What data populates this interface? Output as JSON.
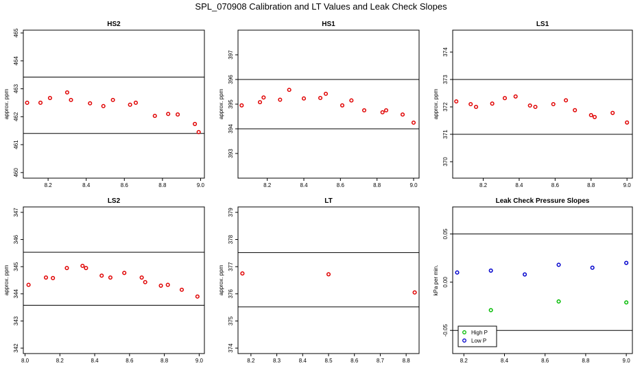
{
  "title": "SPL_070908  Calibration and LT Values and Leak Check Slopes",
  "chart_data": [
    {
      "type": "scatter",
      "title": "HS2",
      "ylabel": "approx. ppm",
      "xlim": [
        8.07,
        9.02
      ],
      "ylim": [
        459.8,
        465.1
      ],
      "xticks": [
        8.2,
        8.4,
        8.6,
        8.8,
        9.0
      ],
      "xtick_labels": [
        "8.2",
        "8.4",
        "8.6",
        "8.8",
        "9.0"
      ],
      "yticks": [
        460,
        461,
        462,
        463,
        464,
        465
      ],
      "ytick_labels": [
        "460",
        "461",
        "462",
        "463",
        "464",
        "465"
      ],
      "hlines": [
        463.42,
        461.4
      ],
      "series": [
        {
          "color": "#e00000",
          "x": [
            8.09,
            8.16,
            8.21,
            8.3,
            8.32,
            8.42,
            8.49,
            8.54,
            8.63,
            8.66,
            8.76,
            8.83,
            8.88,
            8.97,
            8.99
          ],
          "y": [
            462.5,
            462.5,
            462.67,
            462.87,
            462.6,
            462.48,
            462.38,
            462.6,
            462.43,
            462.5,
            462.03,
            462.1,
            462.08,
            461.74,
            461.45
          ]
        }
      ]
    },
    {
      "type": "scatter",
      "title": "HS1",
      "ylabel": "approx. ppm",
      "xlim": [
        8.04,
        9.03
      ],
      "ylim": [
        392.0,
        398.0
      ],
      "xticks": [
        8.2,
        8.4,
        8.6,
        8.8,
        9.0
      ],
      "xtick_labels": [
        "8.2",
        "8.4",
        "8.6",
        "8.8",
        "9.0"
      ],
      "yticks": [
        393,
        394,
        395,
        396,
        397
      ],
      "ytick_labels": [
        "393",
        "394",
        "395",
        "396",
        "397"
      ],
      "hlines": [
        396.0,
        394.0
      ],
      "series": [
        {
          "color": "#e00000",
          "x": [
            8.06,
            8.16,
            8.18,
            8.27,
            8.32,
            8.4,
            8.49,
            8.52,
            8.61,
            8.66,
            8.73,
            8.83,
            8.85,
            8.94,
            9.0
          ],
          "y": [
            394.95,
            395.08,
            395.27,
            395.18,
            395.58,
            395.23,
            395.25,
            395.42,
            394.95,
            395.15,
            394.75,
            394.67,
            394.75,
            394.58,
            394.25
          ]
        }
      ]
    },
    {
      "type": "scatter",
      "title": "LS1",
      "ylabel": "approx. ppm",
      "xlim": [
        8.03,
        9.03
      ],
      "ylim": [
        369.4,
        374.8
      ],
      "xticks": [
        8.2,
        8.4,
        8.6,
        8.8,
        9.0
      ],
      "xtick_labels": [
        "8.2",
        "8.4",
        "8.6",
        "8.8",
        "9.0"
      ],
      "yticks": [
        370,
        371,
        372,
        373,
        374
      ],
      "ytick_labels": [
        "370",
        "371",
        "372",
        "373",
        "374"
      ],
      "hlines": [
        373.0,
        371.0
      ],
      "series": [
        {
          "color": "#e00000",
          "x": [
            8.05,
            8.13,
            8.16,
            8.25,
            8.32,
            8.38,
            8.46,
            8.49,
            8.59,
            8.66,
            8.71,
            8.8,
            8.82,
            8.92,
            9.0
          ],
          "y": [
            372.2,
            372.1,
            372.0,
            372.12,
            372.32,
            372.38,
            372.05,
            372.0,
            372.1,
            372.24,
            371.88,
            371.7,
            371.63,
            371.78,
            371.43
          ]
        }
      ]
    },
    {
      "type": "scatter",
      "title": "LS2",
      "ylabel": "approx. ppm",
      "xlim": [
        7.99,
        9.03
      ],
      "ylim": [
        341.8,
        347.2
      ],
      "xticks": [
        8.0,
        8.2,
        8.4,
        8.6,
        8.8,
        9.0
      ],
      "xtick_labels": [
        "8.0",
        "8.2",
        "8.4",
        "8.6",
        "8.8",
        "9.0"
      ],
      "yticks": [
        342,
        343,
        344,
        345,
        346,
        347
      ],
      "ytick_labels": [
        "342",
        "343",
        "344",
        "345",
        "346",
        "347"
      ],
      "hlines": [
        345.53,
        343.58
      ],
      "series": [
        {
          "color": "#e00000",
          "x": [
            8.02,
            8.12,
            8.16,
            8.24,
            8.33,
            8.35,
            8.44,
            8.49,
            8.57,
            8.67,
            8.69,
            8.78,
            8.82,
            8.9,
            8.99
          ],
          "y": [
            344.33,
            344.6,
            344.58,
            344.95,
            345.03,
            344.95,
            344.67,
            344.6,
            344.77,
            344.6,
            344.43,
            344.3,
            344.33,
            344.15,
            343.9
          ]
        }
      ]
    },
    {
      "type": "scatter",
      "title": "LT",
      "ylabel": "approx. ppm",
      "xlim": [
        8.15,
        8.85
      ],
      "ylim": [
        373.8,
        379.2
      ],
      "xticks": [
        8.2,
        8.3,
        8.4,
        8.5,
        8.6,
        8.7,
        8.8
      ],
      "xtick_labels": [
        "8.2",
        "8.3",
        "8.4",
        "8.5",
        "8.6",
        "8.7",
        "8.8"
      ],
      "yticks": [
        374,
        375,
        376,
        377,
        378,
        379
      ],
      "ytick_labels": [
        "374",
        "375",
        "376",
        "377",
        "378",
        "379"
      ],
      "hlines": [
        377.52,
        375.52
      ],
      "series": [
        {
          "color": "#e00000",
          "x": [
            8.167,
            8.5,
            8.833
          ],
          "y": [
            376.75,
            376.72,
            376.05
          ]
        }
      ]
    },
    {
      "type": "scatter",
      "title": "Leak Check Pressure Slopes",
      "ylabel": "kPa per min.",
      "xlim": [
        8.145,
        9.03
      ],
      "ylim": [
        -0.074,
        0.078
      ],
      "xticks": [
        8.2,
        8.4,
        8.6,
        8.8,
        9.0
      ],
      "xtick_labels": [
        "8.2",
        "8.4",
        "8.6",
        "8.8",
        "9.0"
      ],
      "yticks": [
        -0.05,
        0.0,
        0.05
      ],
      "ytick_labels": [
        "-0.05",
        "0.00",
        "0.05"
      ],
      "hlines": [
        0.05,
        -0.05
      ],
      "legend": {
        "position": "bottom-left",
        "entries": [
          "High P",
          "Low P"
        ]
      },
      "series": [
        {
          "name": "High P",
          "color": "#00bb00",
          "x": [
            8.333,
            8.667,
            9.0
          ],
          "y": [
            -0.029,
            -0.02,
            -0.021
          ]
        },
        {
          "name": "Low P",
          "color": "#0000cc",
          "x": [
            8.167,
            8.333,
            8.5,
            8.667,
            8.833,
            9.0
          ],
          "y": [
            0.01,
            0.012,
            0.008,
            0.018,
            0.015,
            0.02
          ]
        }
      ]
    }
  ]
}
